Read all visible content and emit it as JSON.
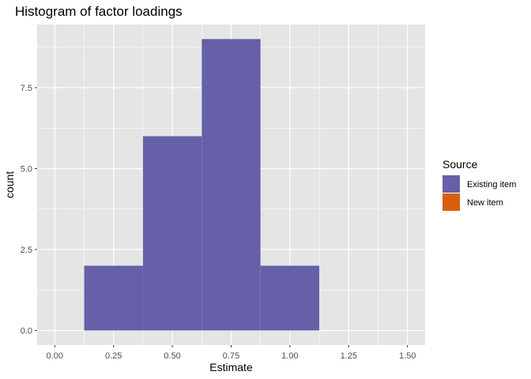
{
  "chart_data": {
    "type": "bar",
    "subtype": "histogram",
    "title": "Histogram of factor loadings",
    "xlabel": "Estimate",
    "ylabel": "count",
    "xlim": [
      -0.075,
      1.575
    ],
    "ylim": [
      -0.45,
      9.45
    ],
    "x_ticks": [
      "0.00",
      "0.25",
      "0.50",
      "0.75",
      "1.00",
      "1.25",
      "1.50"
    ],
    "x_tick_values": [
      0,
      0.25,
      0.5,
      0.75,
      1.0,
      1.25,
      1.5
    ],
    "y_ticks": [
      "0.0",
      "2.5",
      "5.0",
      "7.5"
    ],
    "y_tick_values": [
      0,
      2.5,
      5,
      7.5
    ],
    "bin_width": 0.25,
    "bins": [
      {
        "x_start": 0.125,
        "x_end": 0.375,
        "count": 2,
        "series": "Existing item"
      },
      {
        "x_start": 0.375,
        "x_end": 0.625,
        "count": 6,
        "series": "Existing item"
      },
      {
        "x_start": 0.625,
        "x_end": 0.875,
        "count": 9,
        "series": "Existing item"
      },
      {
        "x_start": 0.875,
        "x_end": 1.125,
        "count": 2,
        "series": "Existing item"
      }
    ],
    "legend": {
      "title": "Source",
      "placement": "right",
      "entries": [
        {
          "label": "Existing item",
          "color": "#6560A8"
        },
        {
          "label": "New item",
          "color": "#D95F0E"
        }
      ]
    },
    "grid": true,
    "panel_background": "#E5E5E5",
    "grid_color": "#FFFFFF"
  }
}
